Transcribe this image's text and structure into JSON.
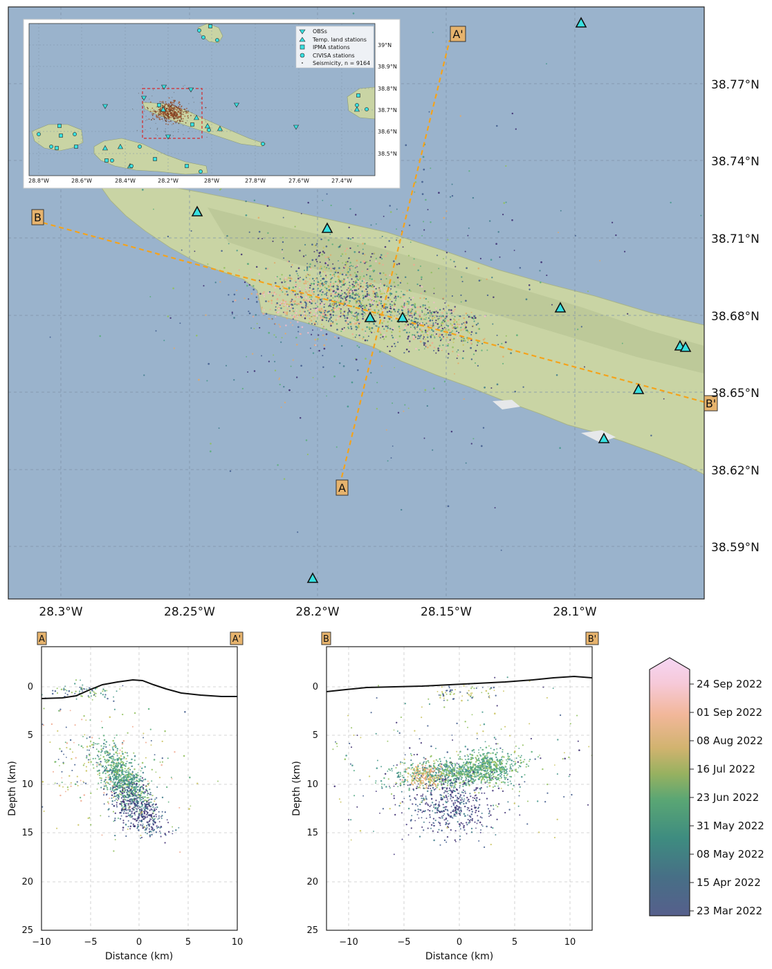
{
  "map": {
    "lon_ticks": [
      "28.3°W",
      "28.25°W",
      "28.2°W",
      "28.15°W",
      "28.1°W"
    ],
    "lat_ticks": [
      "38.77°N",
      "38.74°N",
      "38.71°N",
      "38.68°N",
      "38.65°N",
      "38.62°N",
      "38.59°N"
    ],
    "profile_labels": {
      "a": "A",
      "a_prime": "A'",
      "b": "B",
      "b_prime": "B'"
    },
    "colors": {
      "sea": "#9ab3cc",
      "land": "#c9d4a4",
      "profile": "#f5a31a",
      "station": "#38e0e0"
    }
  },
  "inset": {
    "lon_ticks": [
      "28.8°W",
      "28.6°W",
      "28.4°W",
      "28.2°W",
      "28°W",
      "27.8°W",
      "27.6°W",
      "27.4°W"
    ],
    "lat_ticks": [
      "39°N",
      "38.9°N",
      "38.8°N",
      "38.7°N",
      "38.6°N",
      "38.5°N"
    ],
    "legend": [
      "OBSs",
      "Temp. land stations",
      "IPMA stations",
      "CIVISA stations",
      "Seismicity, n = 9164"
    ]
  },
  "section_a": {
    "start": "A",
    "end": "A'",
    "xlabel": "Distance (km)",
    "ylabel": "Depth (km)",
    "x_ticks": [
      "−10",
      "−5",
      "0",
      "5",
      "10"
    ],
    "y_ticks": [
      "0",
      "5",
      "10",
      "15",
      "20",
      "25"
    ]
  },
  "section_b": {
    "start": "B",
    "end": "B'",
    "xlabel": "Distance (km)",
    "ylabel": "Depth (km)",
    "x_ticks": [
      "−10",
      "−5",
      "0",
      "5",
      "10"
    ],
    "y_ticks": [
      "0",
      "5",
      "10",
      "15",
      "20",
      "25"
    ]
  },
  "colorbar": {
    "labels": [
      "24 Sep 2022",
      "01 Sep 2022",
      "08 Aug 2022",
      "16 Jul 2022",
      "23 Jun 2022",
      "31 May 2022",
      "08 May 2022",
      "15 Apr 2022",
      "23 Mar 2022"
    ]
  }
}
